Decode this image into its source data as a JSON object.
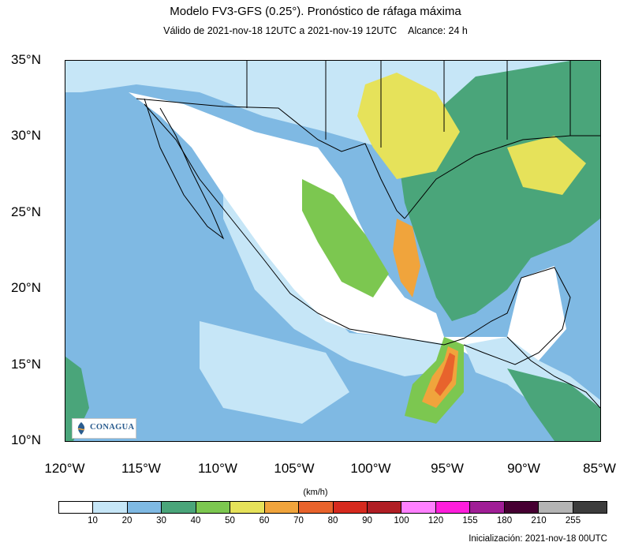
{
  "header": {
    "title": "Modelo FV3-GFS (0.25°). Pronóstico de ráfaga máxima",
    "valid": "Válido de 2021-nov-18 12UTC a 2021-nov-19 12UTC",
    "range": "Alcance: 24 h"
  },
  "axes": {
    "lat_labels": [
      "35°N",
      "30°N",
      "25°N",
      "20°N",
      "15°N",
      "10°N"
    ],
    "lon_labels": [
      "120°W",
      "115°W",
      "110°W",
      "105°W",
      "100°W",
      "95°W",
      "90°W",
      "85°W"
    ],
    "lat_range": [
      10,
      35
    ],
    "lon_range": [
      -120,
      -85
    ]
  },
  "logo": {
    "text": "CONAGUA"
  },
  "colorbar": {
    "units": "(km/h)",
    "labels": [
      "10",
      "20",
      "30",
      "40",
      "50",
      "60",
      "70",
      "80",
      "90",
      "100",
      "120",
      "155",
      "180",
      "210",
      "255"
    ],
    "colors": [
      "#ffffff",
      "#c6e6f7",
      "#7fb9e3",
      "#4aa57a",
      "#7cc750",
      "#e6e25a",
      "#f0a43c",
      "#e8632c",
      "#d62a1e",
      "#b01e24",
      "#ff80ff",
      "#ff1edc",
      "#a01e96",
      "#460032",
      "#b4b4b4",
      "#3c3c3c"
    ]
  },
  "footer": {
    "init": "Inicialización: 2021-nov-18 00UTC"
  },
  "map_colors": {
    "ocean_deep": "#7fb9e3",
    "ocean_light": "#c6e6f7",
    "land_low": "#ffffff",
    "green": "#4aa57a",
    "lightgreen": "#7cc750",
    "yellow": "#e6e25a",
    "orange": "#f0a43c",
    "redorange": "#e8632c"
  }
}
